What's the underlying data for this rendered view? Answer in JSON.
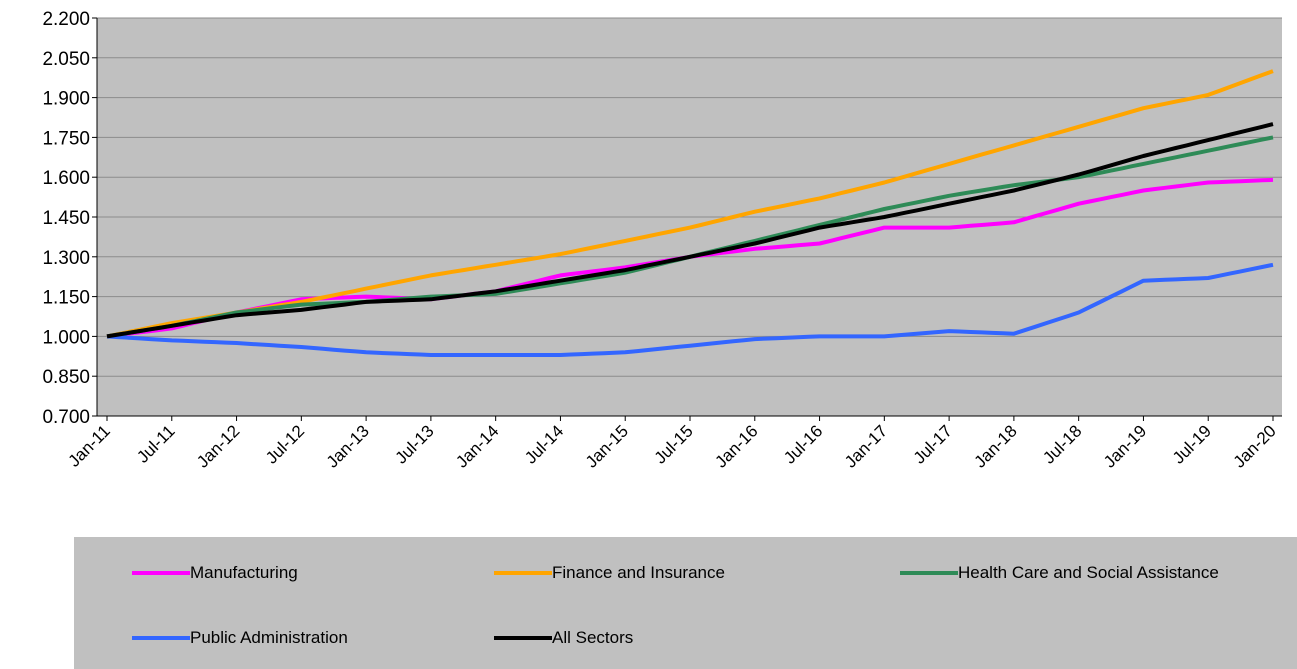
{
  "chart_data": {
    "type": "line",
    "title": "",
    "xlabel": "",
    "ylabel": "",
    "ylim": [
      0.7,
      2.2
    ],
    "y_ticks": [
      "0.700",
      "0.850",
      "1.000",
      "1.150",
      "1.300",
      "1.450",
      "1.600",
      "1.750",
      "1.900",
      "2.050",
      "2.200"
    ],
    "x_tick_labels": [
      "Jan-11",
      "Jul-11",
      "Jan-12",
      "Jul-12",
      "Jan-13",
      "Jul-13",
      "Jan-14",
      "Jul-14",
      "Jan-15",
      "Jul-15",
      "Jan-16",
      "Jul-16",
      "Jan-17",
      "Jul-17",
      "Jan-18",
      "Jul-18",
      "Jan-19",
      "Jul-19",
      "Jan-20"
    ],
    "x_range": [
      "Jan-11",
      "Jan-20"
    ],
    "grid": "horizontal",
    "legend_position": "bottom",
    "background": "#c0c0c0",
    "series": [
      {
        "name": "Manufacturing",
        "color": "#ff00ff",
        "anchors": [
          [
            "Jan-11",
            1.0
          ],
          [
            "Jul-11",
            1.03
          ],
          [
            "Jan-12",
            1.09
          ],
          [
            "Jul-12",
            1.14
          ],
          [
            "Jan-13",
            1.15
          ],
          [
            "Jul-13",
            1.14
          ],
          [
            "Jan-14",
            1.17
          ],
          [
            "Jul-14",
            1.23
          ],
          [
            "Jan-15",
            1.26
          ],
          [
            "Jul-15",
            1.3
          ],
          [
            "Jan-16",
            1.33
          ],
          [
            "Jul-16",
            1.35
          ],
          [
            "Jan-17",
            1.41
          ],
          [
            "Jul-17",
            1.41
          ],
          [
            "Jan-18",
            1.43
          ],
          [
            "Jul-18",
            1.5
          ],
          [
            "Jan-19",
            1.55
          ],
          [
            "Jul-19",
            1.58
          ],
          [
            "Jan-20",
            1.59
          ]
        ]
      },
      {
        "name": "Finance and Insurance",
        "color": "#ffa500",
        "anchors": [
          [
            "Jan-11",
            1.0
          ],
          [
            "Jul-11",
            1.05
          ],
          [
            "Jan-12",
            1.09
          ],
          [
            "Jul-12",
            1.13
          ],
          [
            "Jan-13",
            1.18
          ],
          [
            "Jul-13",
            1.23
          ],
          [
            "Jan-14",
            1.27
          ],
          [
            "Jul-14",
            1.31
          ],
          [
            "Jan-15",
            1.36
          ],
          [
            "Jul-15",
            1.41
          ],
          [
            "Jan-16",
            1.47
          ],
          [
            "Jul-16",
            1.52
          ],
          [
            "Jan-17",
            1.58
          ],
          [
            "Jul-17",
            1.65
          ],
          [
            "Jan-18",
            1.72
          ],
          [
            "Jul-18",
            1.79
          ],
          [
            "Jan-19",
            1.86
          ],
          [
            "Jul-19",
            1.91
          ],
          [
            "Jan-20",
            2.0
          ]
        ]
      },
      {
        "name": "Health Care and Social Assistance",
        "color": "#2e8b57",
        "anchors": [
          [
            "Jan-11",
            1.0
          ],
          [
            "Jul-11",
            1.04
          ],
          [
            "Jan-12",
            1.09
          ],
          [
            "Jul-12",
            1.12
          ],
          [
            "Jan-13",
            1.13
          ],
          [
            "Jul-13",
            1.15
          ],
          [
            "Jan-14",
            1.16
          ],
          [
            "Jul-14",
            1.2
          ],
          [
            "Jan-15",
            1.24
          ],
          [
            "Jul-15",
            1.3
          ],
          [
            "Jan-16",
            1.36
          ],
          [
            "Jul-16",
            1.42
          ],
          [
            "Jan-17",
            1.48
          ],
          [
            "Jul-17",
            1.53
          ],
          [
            "Jan-18",
            1.57
          ],
          [
            "Jul-18",
            1.6
          ],
          [
            "Jan-19",
            1.65
          ],
          [
            "Jul-19",
            1.7
          ],
          [
            "Jan-20",
            1.75
          ]
        ]
      },
      {
        "name": "Public Administration",
        "color": "#3366ff",
        "anchors": [
          [
            "Jan-11",
            1.0
          ],
          [
            "Jul-11",
            0.985
          ],
          [
            "Jan-12",
            0.975
          ],
          [
            "Jul-12",
            0.96
          ],
          [
            "Jan-13",
            0.94
          ],
          [
            "Jul-13",
            0.93
          ],
          [
            "Jan-14",
            0.93
          ],
          [
            "Jul-14",
            0.93
          ],
          [
            "Jan-15",
            0.94
          ],
          [
            "Jul-15",
            0.965
          ],
          [
            "Jan-16",
            0.99
          ],
          [
            "Jul-16",
            1.0
          ],
          [
            "Jan-17",
            1.0
          ],
          [
            "Jul-17",
            1.02
          ],
          [
            "Jan-18",
            1.01
          ],
          [
            "Jul-18",
            1.09
          ],
          [
            "Jan-19",
            1.21
          ],
          [
            "Jul-19",
            1.22
          ],
          [
            "Jan-20",
            1.27
          ]
        ]
      },
      {
        "name": "All Sectors",
        "color": "#000000",
        "anchors": [
          [
            "Jan-11",
            1.0
          ],
          [
            "Jul-11",
            1.04
          ],
          [
            "Jan-12",
            1.08
          ],
          [
            "Jul-12",
            1.1
          ],
          [
            "Jan-13",
            1.13
          ],
          [
            "Jul-13",
            1.14
          ],
          [
            "Jan-14",
            1.17
          ],
          [
            "Jul-14",
            1.21
          ],
          [
            "Jan-15",
            1.25
          ],
          [
            "Jul-15",
            1.3
          ],
          [
            "Jan-16",
            1.35
          ],
          [
            "Jul-16",
            1.41
          ],
          [
            "Jan-17",
            1.45
          ],
          [
            "Jul-17",
            1.5
          ],
          [
            "Jan-18",
            1.55
          ],
          [
            "Jul-18",
            1.61
          ],
          [
            "Jan-19",
            1.68
          ],
          [
            "Jul-19",
            1.74
          ],
          [
            "Jan-20",
            1.8
          ]
        ]
      }
    ]
  }
}
